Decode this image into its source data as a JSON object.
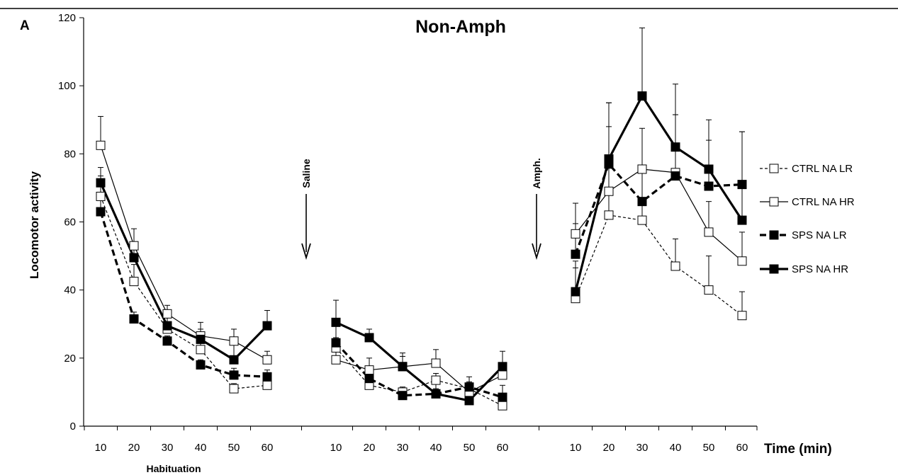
{
  "chart_data": {
    "type": "line",
    "panel_label": "A",
    "title": "Non-Amph",
    "ylabel": "Locomotor activity",
    "xlabel": "Time (min)",
    "ylim": [
      0,
      120
    ],
    "yticks": [
      0,
      20,
      40,
      60,
      80,
      100,
      120
    ],
    "segments": [
      {
        "x": [
          10,
          20,
          30,
          40,
          50,
          60
        ],
        "label": "Habituation"
      },
      {
        "x": [
          10,
          20,
          30,
          40,
          50,
          60
        ],
        "label": ""
      },
      {
        "x": [
          10,
          20,
          30,
          40,
          50,
          60
        ],
        "label": ""
      }
    ],
    "injection_markers": [
      "Saline",
      "Amph."
    ],
    "series": [
      {
        "name": "CTRL NA LR",
        "marker": "open-square",
        "line": "thin-dashed",
        "values": [
          [
            67.5,
            42.5,
            28.5,
            22.5,
            11,
            12
          ],
          [
            23,
            12,
            10,
            13.5,
            11,
            6
          ],
          [
            37.5,
            62,
            60.5,
            47,
            40,
            32.5
          ]
        ],
        "errors": [
          [
            6,
            5,
            2,
            2,
            1.5,
            1.5
          ],
          [
            3,
            2,
            1.5,
            2,
            1.5,
            1.5
          ],
          [
            9,
            8,
            6,
            8,
            10,
            7
          ]
        ]
      },
      {
        "name": "CTRL NA HR",
        "marker": "open-square",
        "line": "thin-solid",
        "values": [
          [
            82.5,
            53,
            33,
            26.5,
            25,
            19.5
          ],
          [
            19.5,
            16.5,
            17.5,
            18.5,
            10,
            15
          ],
          [
            56.5,
            69,
            75.5,
            74.5,
            57,
            48.5
          ]
        ],
        "errors": [
          [
            8.5,
            5,
            2.5,
            4,
            3.5,
            2.5
          ],
          [
            4,
            3.5,
            3,
            4,
            3,
            3
          ],
          [
            9,
            19,
            12,
            17,
            9,
            8.5
          ]
        ]
      },
      {
        "name": "SPS NA LR",
        "marker": "filled-square",
        "line": "thick-dashed",
        "values": [
          [
            63,
            31.5,
            25,
            18,
            15,
            14.5
          ],
          [
            24.5,
            14,
            9,
            9.5,
            11.5,
            8.5
          ],
          [
            50.5,
            77,
            66,
            73.5,
            70.5,
            71
          ]
        ],
        "errors": [
          [
            5,
            2,
            1.5,
            1.5,
            2,
            2
          ],
          [
            5,
            2.5,
            1.5,
            1.5,
            3,
            3.5
          ],
          [
            9,
            18,
            10,
            18,
            13.5,
            15.5
          ]
        ]
      },
      {
        "name": "SPS NA HR",
        "marker": "filled-square",
        "line": "thick-solid",
        "values": [
          [
            71.5,
            49.5,
            29.5,
            25.5,
            19.5,
            29.5
          ],
          [
            30.5,
            26,
            17.5,
            9.5,
            7.5,
            17.5
          ],
          [
            39.5,
            78.5,
            97,
            82,
            75.5,
            60.5
          ]
        ],
        "errors": [
          [
            4.5,
            4.5,
            2.5,
            3,
            5,
            4.5
          ],
          [
            6.5,
            2.5,
            4,
            3,
            3,
            4.5
          ],
          [
            9,
            16.5,
            20,
            18.5,
            14.5,
            26
          ]
        ]
      }
    ],
    "legend_position": "right"
  }
}
